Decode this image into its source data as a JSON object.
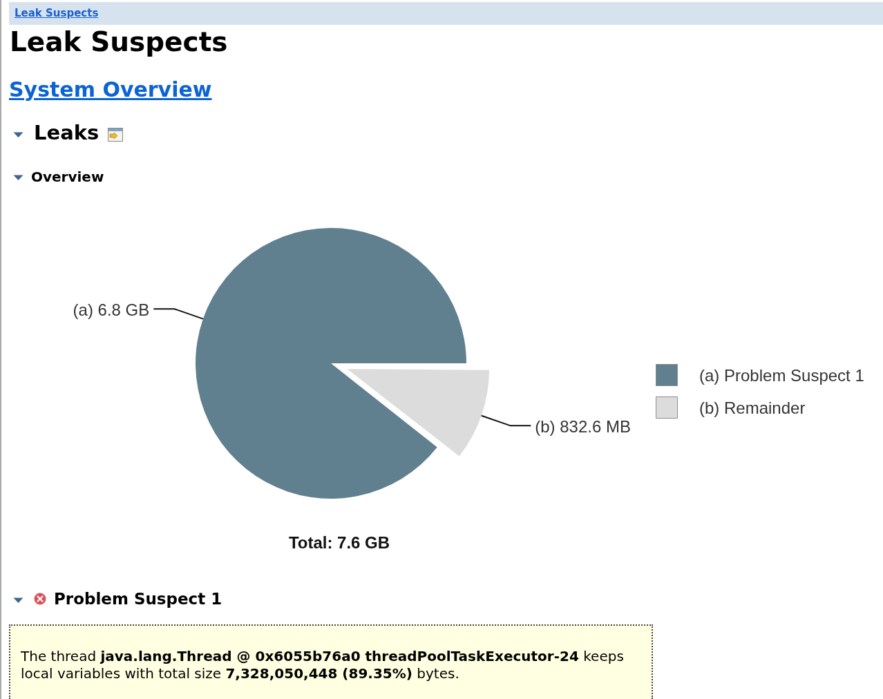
{
  "chart_data": {
    "type": "pie",
    "title": "Leak Suspects",
    "categories": [
      "(a) Problem Suspect 1",
      "(b) Remainder"
    ],
    "values": [
      89.35,
      10.65
    ],
    "colors": [
      "#607f8f",
      "#dcdcdc"
    ],
    "legend": "right",
    "annotations": [
      "(a) 6.8 GB",
      "(b) 832.6 MB",
      "Leak Suspects",
      "System Overview",
      "Leaks",
      "Overview",
      "Total: 7.6 GB",
      "Problem Suspect 1",
      "The thread",
      "java.lang.Thread @ 0x6055b76a0 threadPoolTaskExecutor-24",
      "keeps",
      "local variables with total size",
      "7,328,050,448 (89.35%)",
      "bytes."
    ]
  }
}
